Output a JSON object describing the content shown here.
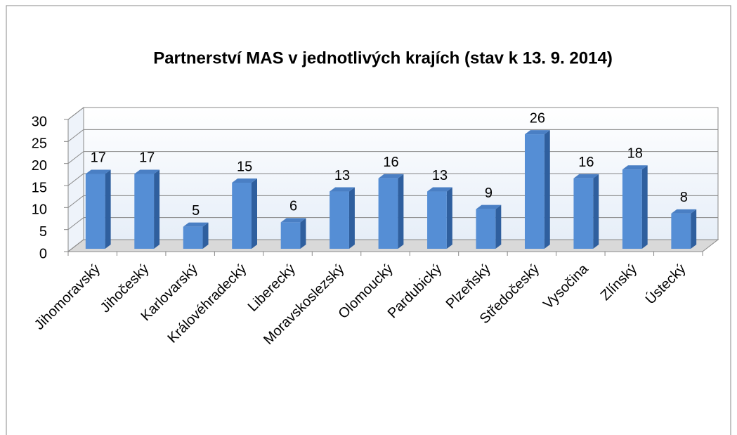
{
  "chart_data": {
    "type": "bar3d",
    "title": "Partnerství MAS v jednotlivých krajích (stav k 13. 9. 2014)",
    "categories": [
      "Jihomoravský",
      "Jihočeský",
      "Karlovarský",
      "Královéhradecký",
      "Liberecký",
      "Moravskoslezský",
      "Olomoucký",
      "Pardubický",
      "Plzeňský",
      "Středočeský",
      "Vysočina",
      "Zlínský",
      "Ústecký"
    ],
    "values": [
      17,
      17,
      5,
      15,
      6,
      13,
      16,
      13,
      9,
      26,
      16,
      18,
      8
    ],
    "color": "#558ed5",
    "ylim": [
      0,
      30
    ],
    "yticks": [
      0,
      5,
      10,
      15,
      20,
      25,
      30
    ],
    "grid": true
  }
}
